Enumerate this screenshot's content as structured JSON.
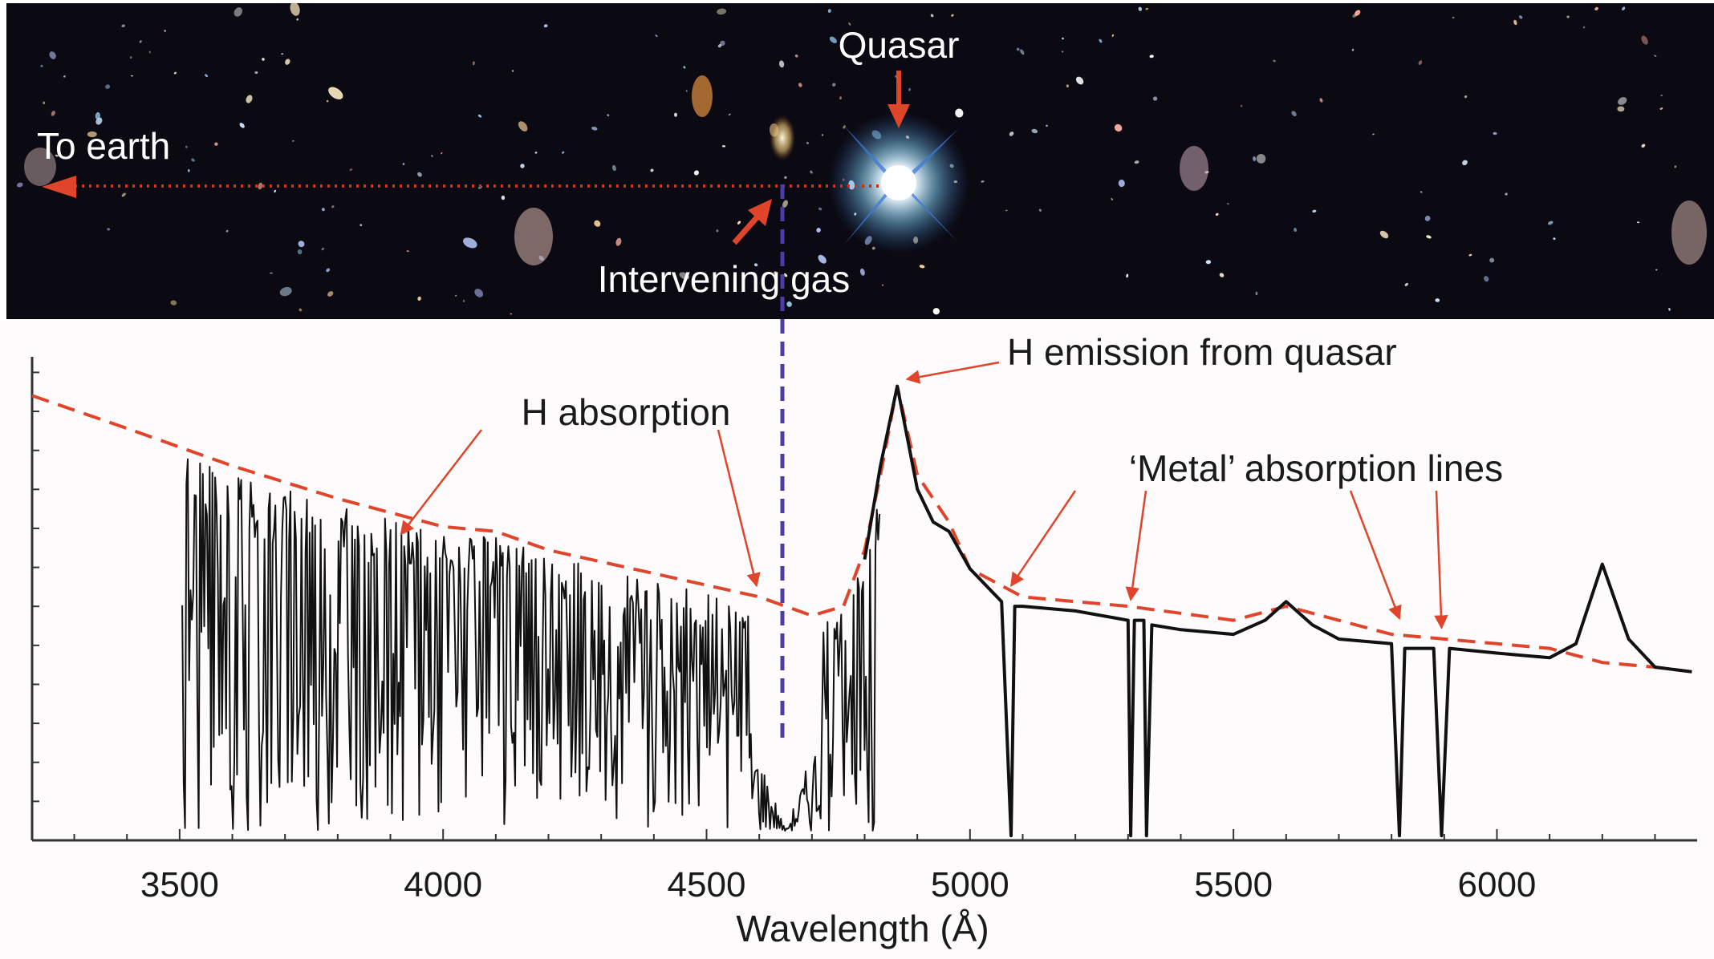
{
  "sky_panel": {
    "labels": {
      "quasar": "Quasar",
      "to_earth": "To earth",
      "intervening_gas": "Intervening gas"
    },
    "colors": {
      "background": "#0b0a12",
      "arrow": "#e0452b",
      "sightline": "#c8321e",
      "gas_marker": "#4b3ca8"
    }
  },
  "chart_data": {
    "type": "line",
    "title": "",
    "xlabel": "Wavelength (Å)",
    "ylabel": "",
    "xlim": [
      3220,
      6380
    ],
    "ylim": [
      0,
      1.05
    ],
    "x_ticks": [
      3500,
      4000,
      4500,
      5000,
      5500,
      6000
    ],
    "x_tick_labels": [
      "3500",
      "4000",
      "4500",
      "5000",
      "5500",
      "6000"
    ],
    "grid": false,
    "legend": "none",
    "annotations": [
      {
        "text": "H absorption",
        "target_x": [
          3920,
          4595
        ]
      },
      {
        "text": "H emission from quasar",
        "target_x": [
          4862
        ]
      },
      {
        "text": "‘Metal’ absorption lines",
        "target_x": [
          5078,
          5305,
          5815,
          5895
        ]
      }
    ],
    "series": [
      {
        "style": "dashed",
        "color": "#e0452b",
        "x": [
          3220,
          3400,
          3600,
          3800,
          4000,
          4100,
          4200,
          4400,
          4600,
          4650,
          4700,
          4760,
          4800,
          4830,
          4862,
          4900,
          4960,
          5000,
          5100,
          5300,
          5500,
          5600,
          5800,
          6000,
          6100,
          6200,
          6300,
          6370
        ],
        "y": [
          0.95,
          0.88,
          0.8,
          0.73,
          0.67,
          0.66,
          0.62,
          0.57,
          0.52,
          0.5,
          0.48,
          0.5,
          0.62,
          0.78,
          0.97,
          0.78,
          0.68,
          0.58,
          0.52,
          0.5,
          0.47,
          0.5,
          0.44,
          0.42,
          0.41,
          0.38,
          0.37,
          0.36
        ]
      },
      {
        "style": "solid",
        "color": "#111111",
        "x": [
          4800,
          4830,
          4862,
          4900,
          4930,
          4960,
          5000,
          5060,
          5078,
          5085,
          5100,
          5200,
          5300,
          5305,
          5312,
          5330,
          5335,
          5345,
          5400,
          5500,
          5560,
          5600,
          5650,
          5700,
          5800,
          5815,
          5825,
          5880,
          5895,
          5910,
          6000,
          6100,
          6150,
          6200,
          6250,
          6300,
          6370
        ],
        "y": [
          0.6,
          0.8,
          0.97,
          0.75,
          0.68,
          0.66,
          0.58,
          0.51,
          0.01,
          0.5,
          0.5,
          0.49,
          0.47,
          0.01,
          0.47,
          0.47,
          0.01,
          0.46,
          0.45,
          0.44,
          0.47,
          0.51,
          0.46,
          0.43,
          0.42,
          0.01,
          0.41,
          0.41,
          0.01,
          0.41,
          0.4,
          0.39,
          0.42,
          0.59,
          0.43,
          0.37,
          0.36
        ]
      }
    ]
  }
}
